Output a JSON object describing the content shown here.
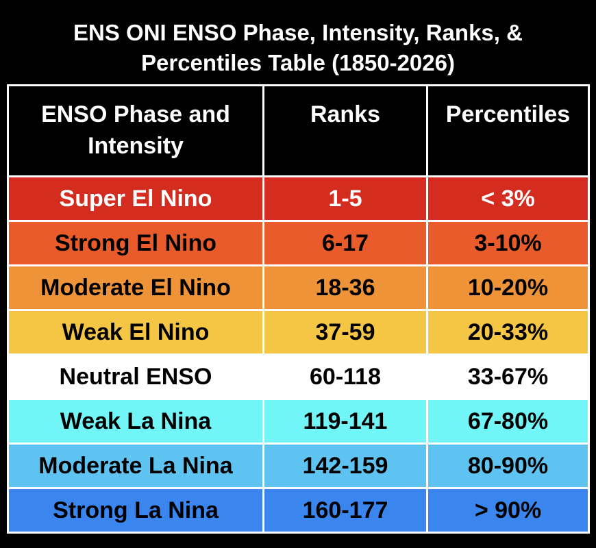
{
  "header": {
    "title": "ENS ONI ENSO Phase, Intensity, Ranks, & Percentiles Table (1850-2026)"
  },
  "table": {
    "columns": [
      "ENSO Phase and Intensity",
      "Ranks",
      "Percentiles"
    ],
    "rows": [
      [
        "Super El Nino",
        "1-5",
        "< 3%"
      ],
      [
        "Strong El Nino",
        "6-17",
        "3-10%"
      ],
      [
        "Moderate El Nino",
        "18-36",
        "10-20%"
      ],
      [
        "Weak El Nino",
        "37-59",
        "20-33%"
      ],
      [
        "Neutral ENSO",
        "60-118",
        "33-67%"
      ],
      [
        "Weak La Nina",
        "119-141",
        "67-80%"
      ],
      [
        "Moderate La Nina",
        "142-159",
        "80-90%"
      ],
      [
        "Strong La Nina",
        "160-177",
        "> 90%"
      ]
    ]
  }
}
